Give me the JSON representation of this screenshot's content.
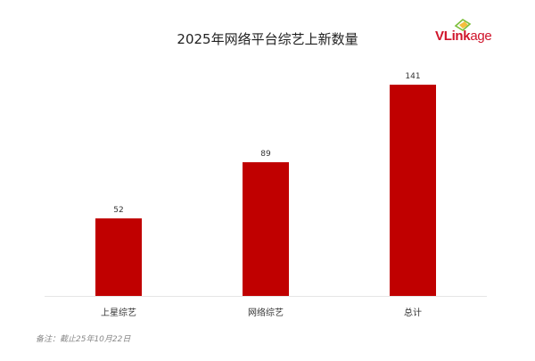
{
  "header": {
    "title": "2025年网络平台综艺上新数量",
    "logo": {
      "text_a": "VLink",
      "text_b": "age",
      "icon": "vlinkage-logo-icon"
    }
  },
  "footer": {
    "note": "备注：截止25年10月22日"
  },
  "colors": {
    "bar": "#c00000",
    "logo_red": "#d0152b",
    "logo_green": "#7bbf3a",
    "logo_yellow": "#f2b41c"
  },
  "chart_data": {
    "type": "bar",
    "title": "2025年网络平台综艺上新数量",
    "categories": [
      "上星综艺",
      "网络综艺",
      "总计"
    ],
    "values": [
      52,
      89,
      141
    ],
    "data_labels": [
      "52",
      "89",
      "141"
    ],
    "xlabel": "",
    "ylabel": "",
    "ylim": [
      0,
      160
    ],
    "grid": false,
    "legend": "none",
    "annotations": [
      "备注：截止25年10月22日"
    ]
  }
}
